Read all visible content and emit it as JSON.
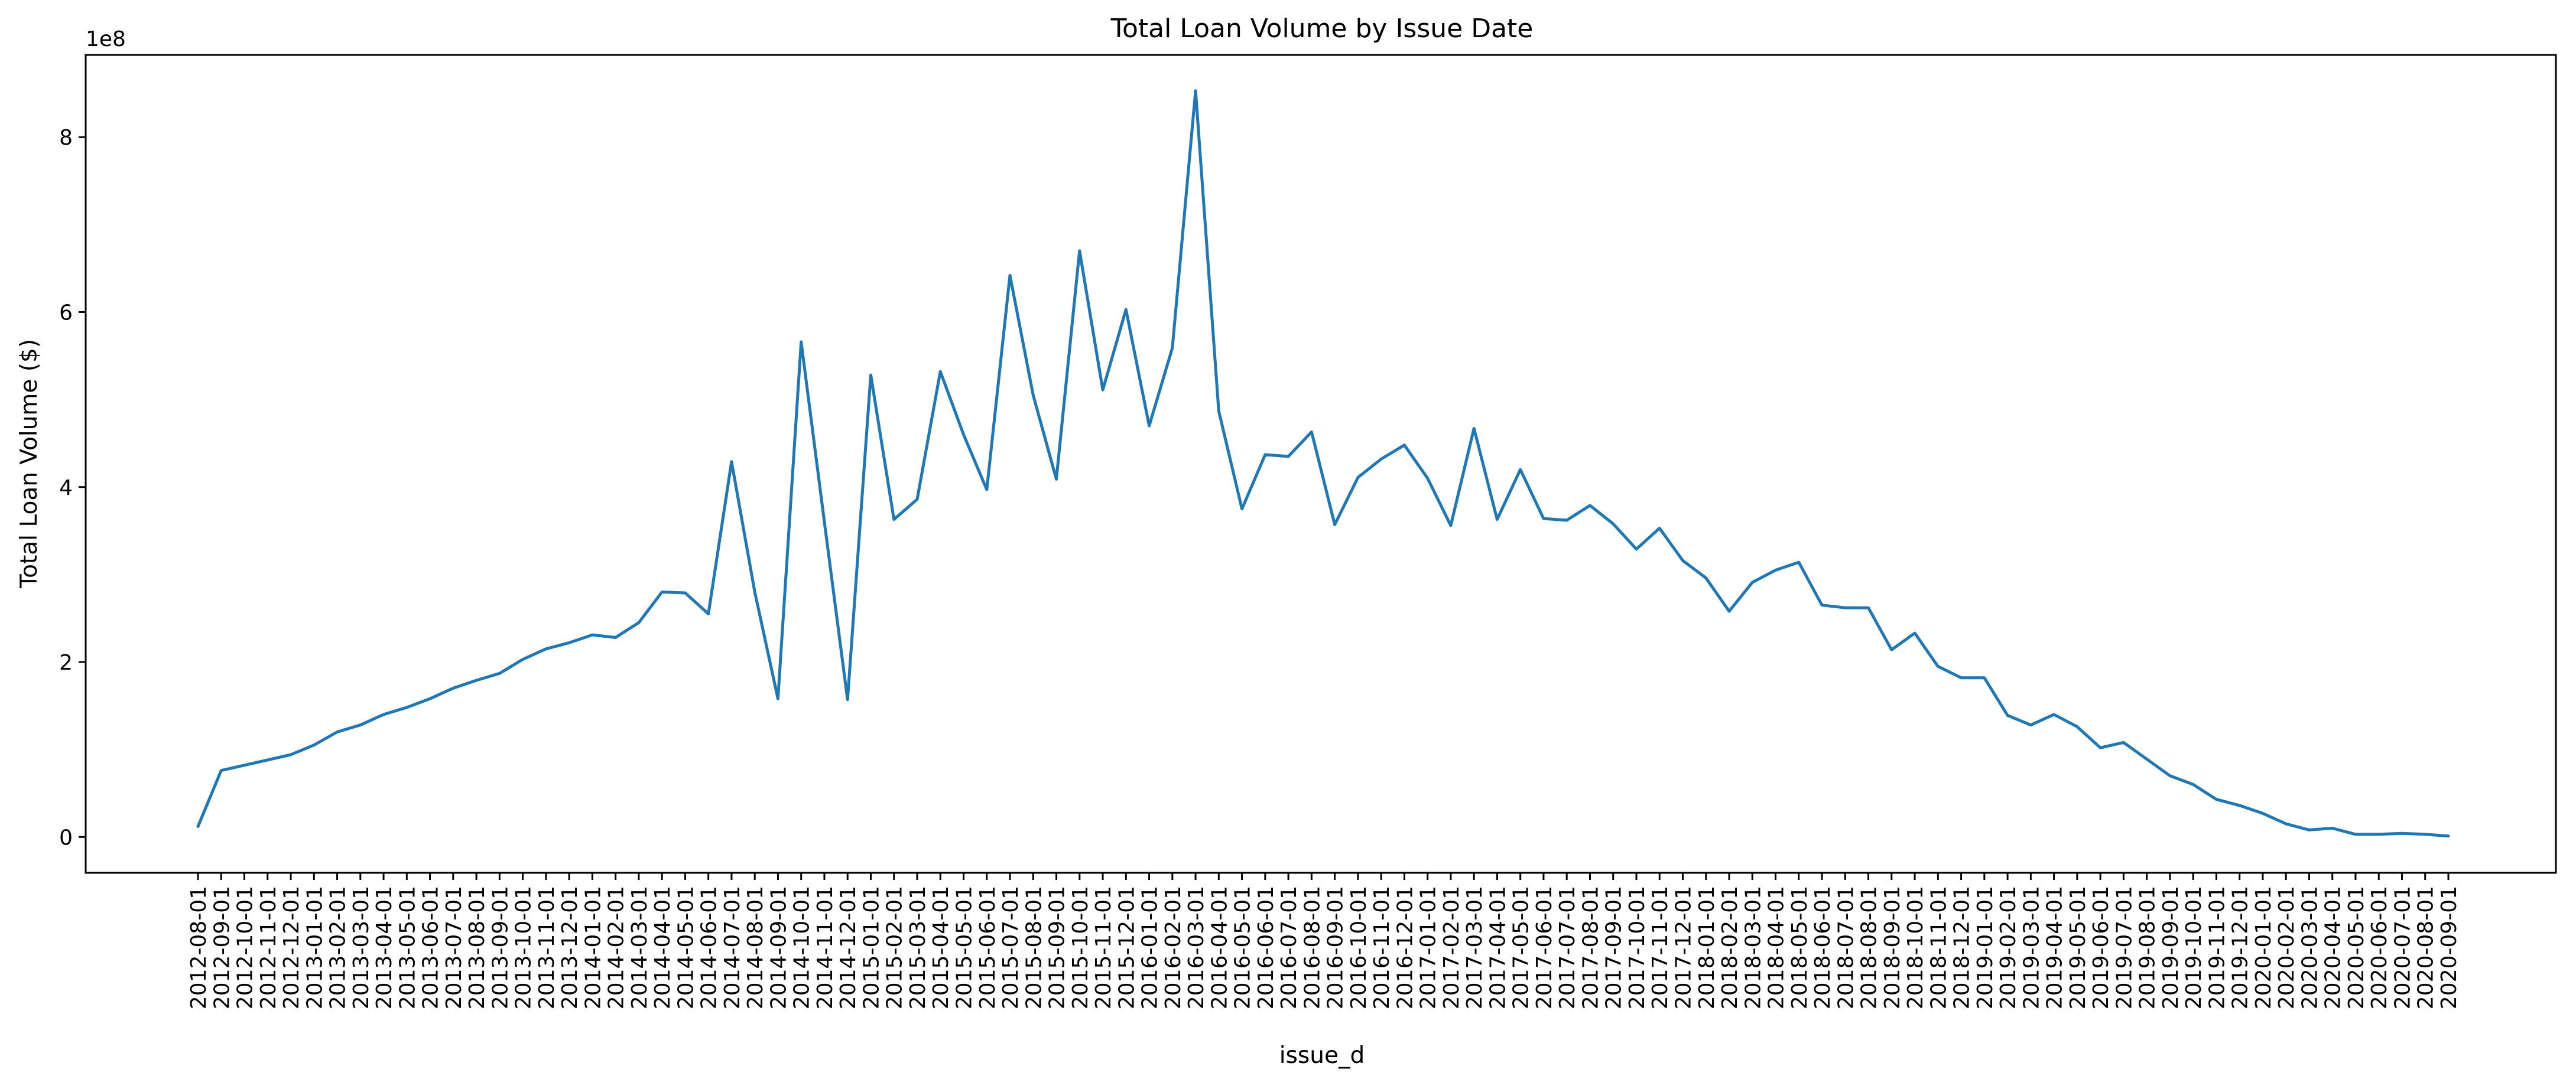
{
  "chart_data": {
    "type": "line",
    "title": "Total Loan Volume by Issue Date",
    "xlabel": "issue_d",
    "ylabel": "Total Loan Volume ($)",
    "y_multiplier_label": "1e8",
    "y_multiplier": 100000000,
    "ylim": [
      -0.41,
      8.94
    ],
    "y_ticks": [
      0,
      2,
      4,
      6,
      8
    ],
    "y_tick_labels": [
      "0",
      "2",
      "4",
      "6",
      "8"
    ],
    "grid": false,
    "line_color": "#1f77b4",
    "x": [
      "2012-08-01",
      "2012-09-01",
      "2012-10-01",
      "2012-11-01",
      "2012-12-01",
      "2013-01-01",
      "2013-02-01",
      "2013-03-01",
      "2013-04-01",
      "2013-05-01",
      "2013-06-01",
      "2013-07-01",
      "2013-08-01",
      "2013-09-01",
      "2013-10-01",
      "2013-11-01",
      "2013-12-01",
      "2014-01-01",
      "2014-02-01",
      "2014-03-01",
      "2014-04-01",
      "2014-05-01",
      "2014-06-01",
      "2014-07-01",
      "2014-08-01",
      "2014-09-01",
      "2014-10-01",
      "2014-11-01",
      "2014-12-01",
      "2015-01-01",
      "2015-02-01",
      "2015-03-01",
      "2015-04-01",
      "2015-05-01",
      "2015-06-01",
      "2015-07-01",
      "2015-08-01",
      "2015-09-01",
      "2015-10-01",
      "2015-11-01",
      "2015-12-01",
      "2016-01-01",
      "2016-02-01",
      "2016-03-01",
      "2016-04-01",
      "2016-05-01",
      "2016-06-01",
      "2016-07-01",
      "2016-08-01",
      "2016-09-01",
      "2016-10-01",
      "2016-11-01",
      "2016-12-01",
      "2017-01-01",
      "2017-02-01",
      "2017-03-01",
      "2017-04-01",
      "2017-05-01",
      "2017-06-01",
      "2017-07-01",
      "2017-08-01",
      "2017-09-01",
      "2017-10-01",
      "2017-11-01",
      "2017-12-01",
      "2018-01-01",
      "2018-02-01",
      "2018-03-01",
      "2018-04-01",
      "2018-05-01",
      "2018-06-01",
      "2018-07-01",
      "2018-08-01",
      "2018-09-01",
      "2018-10-01",
      "2018-11-01",
      "2018-12-01",
      "2019-01-01",
      "2019-02-01",
      "2019-03-01",
      "2019-04-01",
      "2019-05-01",
      "2019-06-01",
      "2019-07-01",
      "2019-08-01",
      "2019-09-01",
      "2019-10-01",
      "2019-11-01",
      "2019-12-01",
      "2020-01-01",
      "2020-02-01",
      "2020-03-01",
      "2020-04-01",
      "2020-05-01",
      "2020-06-01",
      "2020-07-01",
      "2020-08-01",
      "2020-09-01"
    ],
    "series": [
      {
        "values": [
          0.12,
          0.76,
          0.82,
          0.88,
          0.94,
          1.05,
          1.2,
          1.28,
          1.4,
          1.48,
          1.58,
          1.7,
          1.79,
          1.87,
          2.03,
          2.15,
          2.22,
          2.31,
          2.28,
          2.45,
          2.8,
          2.79,
          2.55,
          4.29,
          2.8,
          1.58,
          5.66,
          3.6,
          1.57,
          5.28,
          3.63,
          3.86,
          5.32,
          4.6,
          3.97,
          6.42,
          5.05,
          4.09,
          6.7,
          5.11,
          6.03,
          4.7,
          5.59,
          8.53,
          4.87,
          3.75,
          4.37,
          4.35,
          4.63,
          3.57,
          4.11,
          4.32,
          4.48,
          4.1,
          3.56,
          4.67,
          3.63,
          4.2,
          3.64,
          3.62,
          3.79,
          3.58,
          3.29,
          3.53,
          3.16,
          2.96,
          2.58,
          2.91,
          3.05,
          3.14,
          2.65,
          2.62,
          2.62,
          2.14,
          2.33,
          1.95,
          1.82,
          1.82,
          1.39,
          1.28,
          1.4,
          1.26,
          1.02,
          1.08,
          0.89,
          0.7,
          0.6,
          0.43,
          0.36,
          0.27,
          0.15,
          0.08,
          0.1,
          0.03,
          0.03,
          0.04,
          0.03,
          0.01
        ]
      }
    ]
  }
}
